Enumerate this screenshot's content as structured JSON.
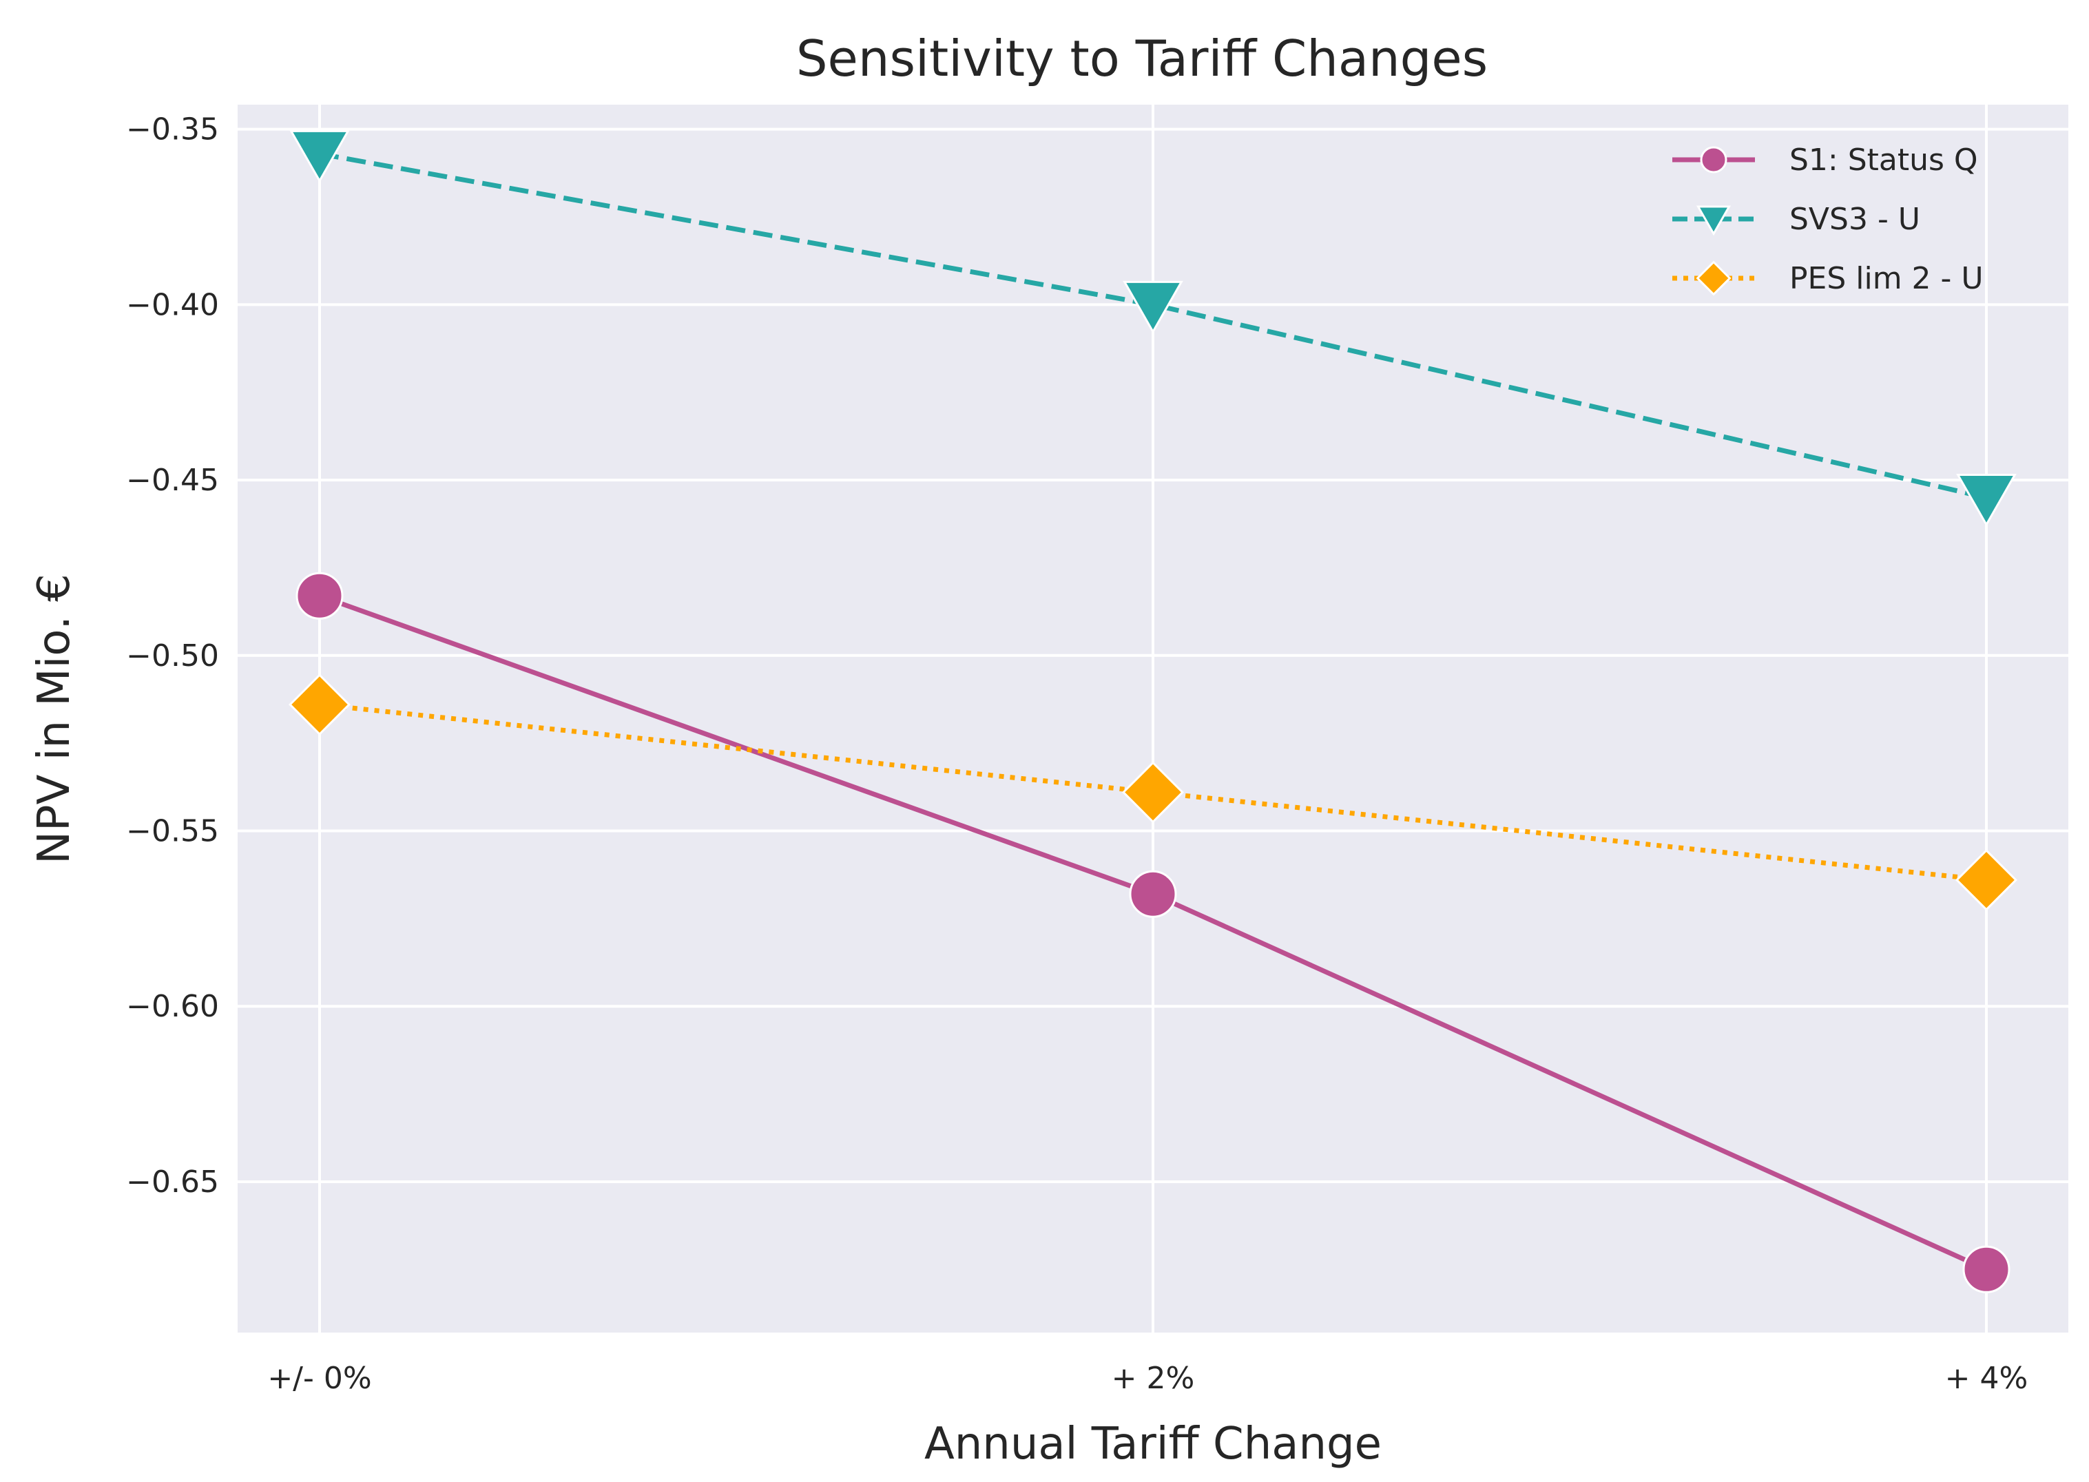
{
  "chart_data": {
    "type": "line",
    "title": "Sensitivity to Tariff Changes",
    "xlabel": "Annual Tariff Change",
    "ylabel": "NPV in Mio. €",
    "categories": [
      "+/- 0%",
      "+ 2%",
      "+ 4%"
    ],
    "ylim": [
      -0.693,
      -0.343
    ],
    "yticks": [
      -0.35,
      -0.4,
      -0.45,
      -0.5,
      -0.55,
      -0.6,
      -0.65
    ],
    "ytick_labels": [
      "−0.35",
      "−0.40",
      "−0.45",
      "−0.50",
      "−0.55",
      "−0.60",
      "−0.65"
    ],
    "grid": true,
    "legend_position": "top-right",
    "series": [
      {
        "name": "S1: Status Q",
        "values": [
          -0.483,
          -0.568,
          -0.675
        ],
        "color": "#bc5090",
        "line_style": "solid",
        "marker": "circle"
      },
      {
        "name": "SVS3 - U",
        "values": [
          -0.357,
          -0.4,
          -0.455
        ],
        "color": "#26a7a5",
        "line_style": "dashed",
        "marker": "triangle-down"
      },
      {
        "name": "PES lim 2 - U",
        "values": [
          -0.514,
          -0.539,
          -0.564
        ],
        "color": "#ffa600",
        "line_style": "dotted",
        "marker": "diamond"
      }
    ]
  },
  "colors": {
    "plot_background": "#eaeaf2",
    "grid": "#ffffff",
    "text": "#262626"
  }
}
